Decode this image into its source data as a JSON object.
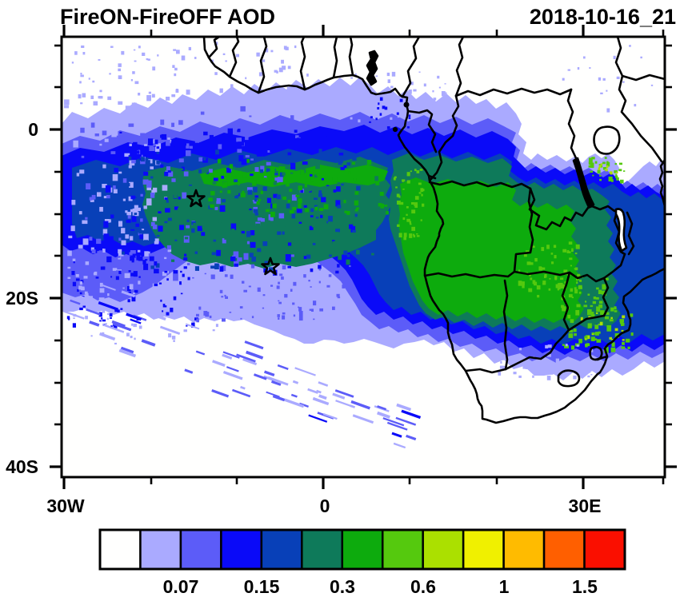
{
  "header": {
    "title": "FireON-FireOFF AOD",
    "datetime": "2018-10-16_21"
  },
  "axes": {
    "y_ticks": [
      "0",
      "20S",
      "40S"
    ],
    "x_ticks": [
      "30W",
      "0",
      "30E"
    ]
  },
  "colorbar": {
    "labels": [
      "0.07",
      "0.15",
      "0.3",
      "0.6",
      "1",
      "1.5"
    ],
    "colors": [
      "#fffffe",
      "#aaaaff",
      "#5c5cf8",
      "#0a0af8",
      "#0840b8",
      "#0e7a5a",
      "#0dab0d",
      "#55c90e",
      "#abe000",
      "#f0f000",
      "#ffbb00",
      "#ff5f00",
      "#fa0f00"
    ]
  },
  "chart_data": {
    "type": "heatmap",
    "subtype": "filled-contour-geomap",
    "title": "FireON-FireOFF AOD",
    "timestamp": "2018-10-16_21",
    "region": "South Atlantic Ocean and southern Africa",
    "x_axis": {
      "tick_labels": [
        "30W",
        "0",
        "30E"
      ],
      "minor_tick_interval_deg": 10,
      "approx_range_deg": [
        -30.5,
        39.5
      ]
    },
    "y_axis": {
      "tick_labels": [
        "0",
        "20S",
        "40S"
      ],
      "minor_tick_interval_deg": 5,
      "approx_range_deg": [
        -41,
        11
      ]
    },
    "colorbar": {
      "n_cells": 13,
      "labels": [
        "0.07",
        "0.15",
        "0.3",
        "0.6",
        "1",
        "1.5"
      ],
      "labels_under_boundary_after_cell": [
        2,
        4,
        6,
        8,
        10,
        12
      ],
      "colors": [
        "#fffffe",
        "#aaaaff",
        "#5c5cf8",
        "#0a0af8",
        "#0840b8",
        "#0e7a5a",
        "#0dab0d",
        "#55c90e",
        "#abe000",
        "#f0f000",
        "#ffbb00",
        "#ff5f00",
        "#fa0f00"
      ]
    },
    "markers": [
      {
        "type": "star",
        "lon_deg": -14.7,
        "lat_deg": -8.2
      },
      {
        "type": "star",
        "lon_deg": -6.1,
        "lat_deg": -16.3
      }
    ],
    "pattern_summary": "Large AOD-difference plume (values mostly 0.07-0.6, locally >0.6) stretching from central/southern Africa (Angola, Congo, Zambia, Zimbabwe, Mozambique) westward over the South Atlantic between roughly 0 and 20S; highest values (green) over land and along ~5-10S over the ocean; scattered weak streaks southwest of the plume; white (near-zero) elsewhere."
  }
}
